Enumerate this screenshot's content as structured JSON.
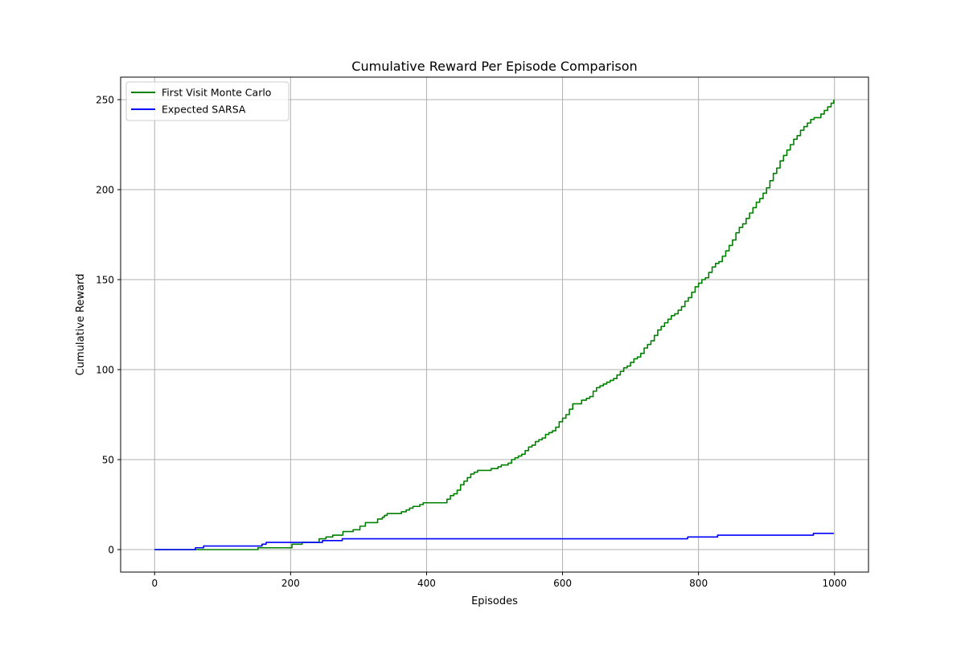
{
  "chart_data": {
    "type": "line",
    "title": "Cumulative Reward Per Episode Comparison",
    "xlabel": "Episodes",
    "ylabel": "Cumulative Reward",
    "xlim": [
      -50,
      1050
    ],
    "ylim": [
      -12.5,
      262.5
    ],
    "x_ticks": [
      0,
      200,
      400,
      600,
      800,
      1000
    ],
    "y_ticks": [
      0,
      50,
      100,
      150,
      200,
      250
    ],
    "grid": true,
    "legend_position": "upper-left",
    "series": [
      {
        "name": "First Visit Monte Carlo",
        "color": "#008000",
        "step": true,
        "points": [
          [
            0,
            0
          ],
          [
            150,
            0
          ],
          [
            152,
            1
          ],
          [
            200,
            1
          ],
          [
            202,
            3
          ],
          [
            215,
            3
          ],
          [
            217,
            4
          ],
          [
            240,
            4
          ],
          [
            242,
            6
          ],
          [
            250,
            6
          ],
          [
            252,
            7
          ],
          [
            260,
            7
          ],
          [
            262,
            8
          ],
          [
            270,
            8
          ],
          [
            275,
            8
          ],
          [
            277,
            10
          ],
          [
            290,
            10
          ],
          [
            292,
            11
          ],
          [
            300,
            11
          ],
          [
            302,
            13
          ],
          [
            310,
            15
          ],
          [
            325,
            15
          ],
          [
            328,
            17
          ],
          [
            335,
            18
          ],
          [
            338,
            19
          ],
          [
            342,
            20
          ],
          [
            360,
            20
          ],
          [
            363,
            21
          ],
          [
            370,
            22
          ],
          [
            375,
            23
          ],
          [
            380,
            24
          ],
          [
            390,
            25
          ],
          [
            395,
            26
          ],
          [
            425,
            26
          ],
          [
            430,
            28
          ],
          [
            435,
            30
          ],
          [
            440,
            31
          ],
          [
            445,
            33
          ],
          [
            450,
            36
          ],
          [
            455,
            38
          ],
          [
            460,
            40
          ],
          [
            465,
            42
          ],
          [
            470,
            43
          ],
          [
            475,
            44
          ],
          [
            490,
            44
          ],
          [
            495,
            45
          ],
          [
            505,
            46
          ],
          [
            510,
            47
          ],
          [
            520,
            48
          ],
          [
            525,
            50
          ],
          [
            530,
            51
          ],
          [
            535,
            52
          ],
          [
            540,
            53
          ],
          [
            545,
            55
          ],
          [
            550,
            57
          ],
          [
            555,
            58
          ],
          [
            560,
            60
          ],
          [
            565,
            61
          ],
          [
            570,
            62
          ],
          [
            575,
            64
          ],
          [
            580,
            65
          ],
          [
            585,
            66
          ],
          [
            590,
            68
          ],
          [
            595,
            71
          ],
          [
            600,
            73
          ],
          [
            605,
            75
          ],
          [
            610,
            78
          ],
          [
            615,
            81
          ],
          [
            625,
            81
          ],
          [
            628,
            83
          ],
          [
            635,
            84
          ],
          [
            640,
            85
          ],
          [
            645,
            88
          ],
          [
            650,
            90
          ],
          [
            655,
            91
          ],
          [
            660,
            92
          ],
          [
            665,
            93
          ],
          [
            670,
            94
          ],
          [
            675,
            95
          ],
          [
            680,
            97
          ],
          [
            685,
            99
          ],
          [
            690,
            101
          ],
          [
            695,
            102
          ],
          [
            700,
            104
          ],
          [
            705,
            106
          ],
          [
            710,
            107
          ],
          [
            715,
            109
          ],
          [
            720,
            112
          ],
          [
            725,
            114
          ],
          [
            730,
            116
          ],
          [
            735,
            119
          ],
          [
            740,
            122
          ],
          [
            745,
            124
          ],
          [
            750,
            126
          ],
          [
            755,
            128
          ],
          [
            760,
            130
          ],
          [
            765,
            131
          ],
          [
            770,
            133
          ],
          [
            775,
            135
          ],
          [
            780,
            138
          ],
          [
            785,
            140
          ],
          [
            790,
            143
          ],
          [
            795,
            146
          ],
          [
            800,
            148
          ],
          [
            805,
            150
          ],
          [
            810,
            151
          ],
          [
            815,
            154
          ],
          [
            820,
            157
          ],
          [
            825,
            159
          ],
          [
            830,
            160
          ],
          [
            835,
            163
          ],
          [
            840,
            166
          ],
          [
            845,
            169
          ],
          [
            850,
            172
          ],
          [
            855,
            176
          ],
          [
            860,
            179
          ],
          [
            865,
            181
          ],
          [
            870,
            184
          ],
          [
            875,
            187
          ],
          [
            880,
            190
          ],
          [
            885,
            193
          ],
          [
            890,
            195
          ],
          [
            895,
            198
          ],
          [
            900,
            201
          ],
          [
            905,
            205
          ],
          [
            910,
            209
          ],
          [
            915,
            212
          ],
          [
            920,
            216
          ],
          [
            925,
            219
          ],
          [
            930,
            222
          ],
          [
            935,
            225
          ],
          [
            940,
            228
          ],
          [
            945,
            230
          ],
          [
            950,
            233
          ],
          [
            955,
            235
          ],
          [
            960,
            237
          ],
          [
            965,
            239
          ],
          [
            970,
            240
          ],
          [
            975,
            240
          ],
          [
            980,
            242
          ],
          [
            985,
            244
          ],
          [
            990,
            246
          ],
          [
            995,
            248
          ],
          [
            999,
            250
          ]
        ]
      },
      {
        "name": "Expected SARSA",
        "color": "#0000ff",
        "step": true,
        "points": [
          [
            0,
            0
          ],
          [
            58,
            0
          ],
          [
            60,
            1
          ],
          [
            70,
            1
          ],
          [
            72,
            2
          ],
          [
            155,
            2
          ],
          [
            158,
            3
          ],
          [
            162,
            3
          ],
          [
            164,
            4
          ],
          [
            245,
            4
          ],
          [
            247,
            5
          ],
          [
            274,
            5
          ],
          [
            276,
            6
          ],
          [
            782,
            6
          ],
          [
            784,
            7
          ],
          [
            826,
            7
          ],
          [
            828,
            8
          ],
          [
            967,
            8
          ],
          [
            969,
            9
          ],
          [
            999,
            9
          ]
        ]
      }
    ]
  }
}
